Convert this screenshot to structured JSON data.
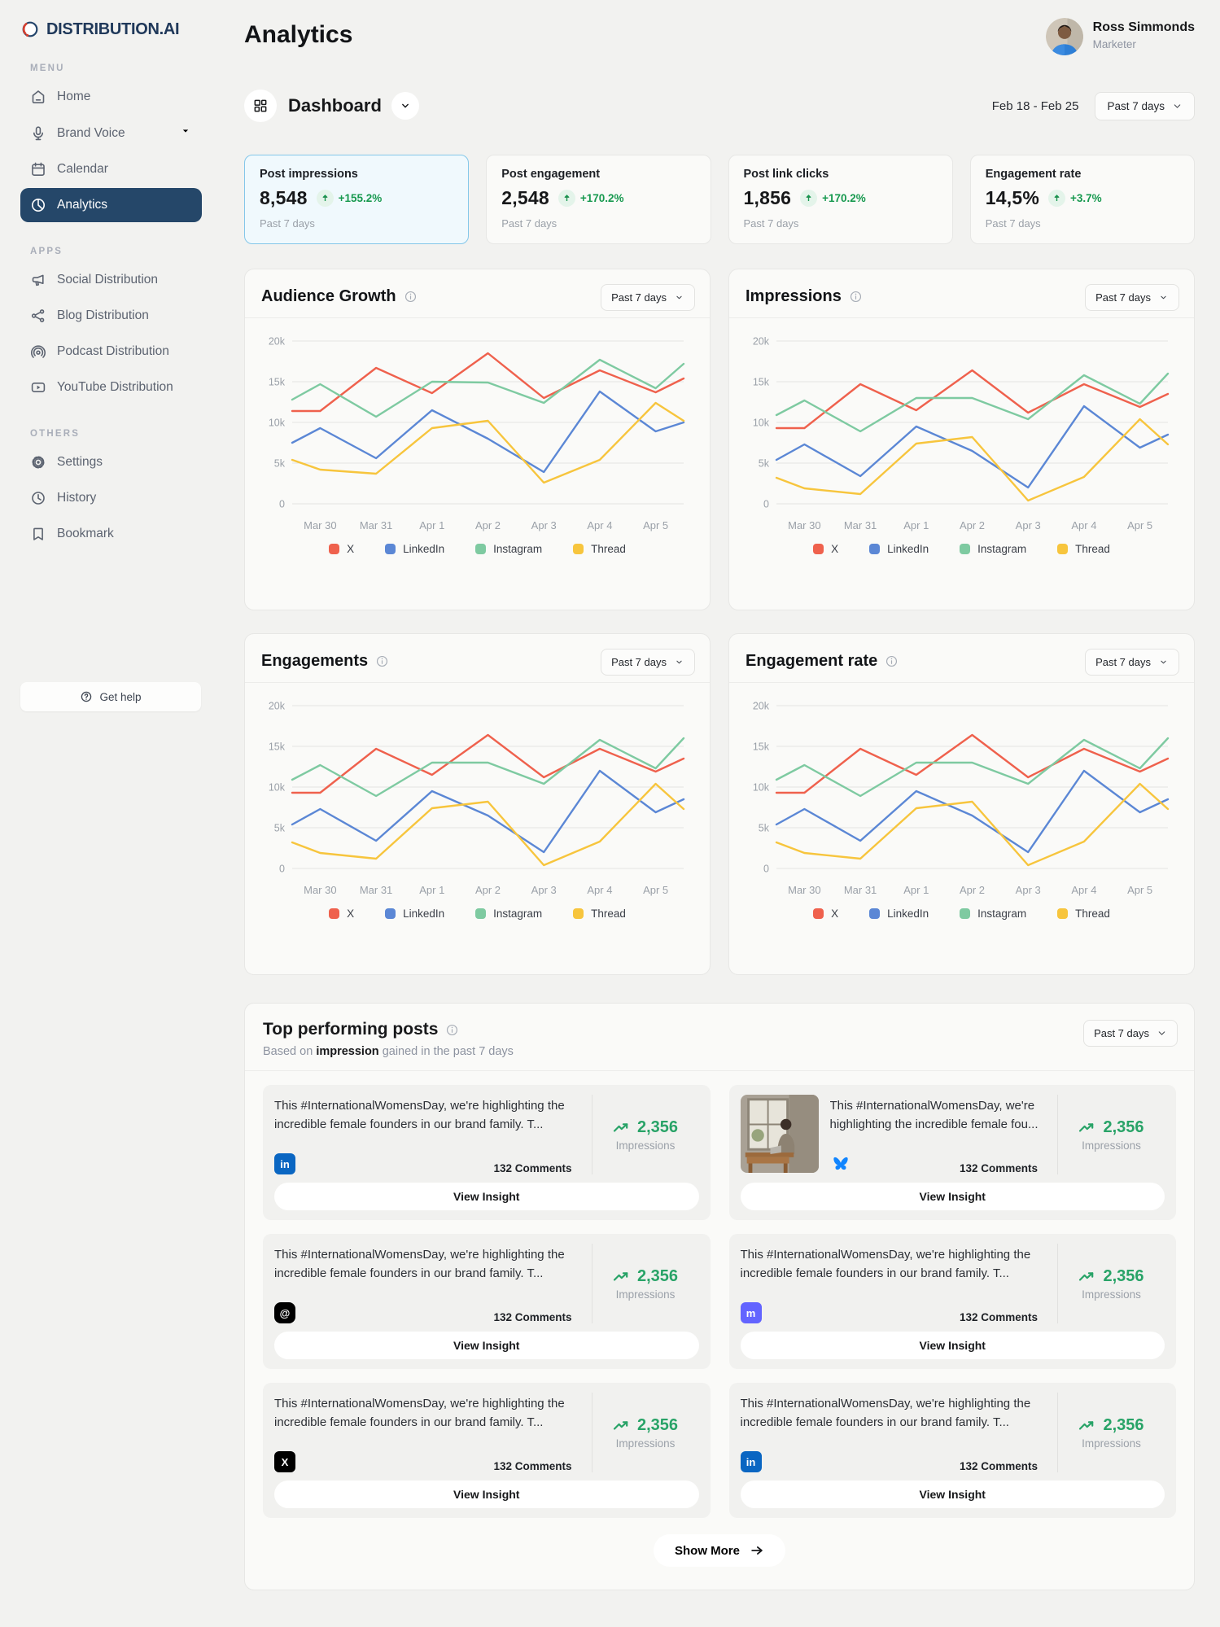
{
  "brand": {
    "name": "DISTRIBUTION.AI"
  },
  "page": {
    "title": "Analytics"
  },
  "user": {
    "name": "Ross Simmonds",
    "role": "Marketer"
  },
  "toolbar": {
    "view": "Dashboard",
    "date_range": "Feb 18 - Feb 25",
    "period": "Past 7 days"
  },
  "sidebar": {
    "help_label": "Get help",
    "sections": [
      {
        "label": "MENU",
        "items": [
          {
            "icon": "home-icon",
            "label": "Home"
          },
          {
            "icon": "microphone-icon",
            "label": "Brand Voice",
            "chevron": true
          },
          {
            "icon": "calendar-icon",
            "label": "Calendar"
          },
          {
            "icon": "pie-chart-icon",
            "label": "Analytics",
            "active": true
          }
        ]
      },
      {
        "label": "APPS",
        "items": [
          {
            "icon": "megaphone-icon",
            "label": "Social Distribution"
          },
          {
            "icon": "share-network-icon",
            "label": "Blog Distribution"
          },
          {
            "icon": "podcast-icon",
            "label": "Podcast Distribution"
          },
          {
            "icon": "youtube-icon",
            "label": "YouTube Distribution"
          }
        ]
      },
      {
        "label": "OTHERS",
        "items": [
          {
            "icon": "gear-icon",
            "label": "Settings"
          },
          {
            "icon": "history-icon",
            "label": "History"
          },
          {
            "icon": "bookmark-icon",
            "label": "Bookmark"
          }
        ]
      }
    ]
  },
  "stats": [
    {
      "label": "Post impressions",
      "value": "8,548",
      "change": "+155.2%",
      "period": "Past 7 days",
      "selected": true
    },
    {
      "label": "Post engagement",
      "value": "2,548",
      "change": "+170.2%",
      "period": "Past 7 days",
      "selected": false
    },
    {
      "label": "Post link clicks",
      "value": "1,856",
      "change": "+170.2%",
      "period": "Past 7 days",
      "selected": false
    },
    {
      "label": "Engagement rate",
      "value": "14,5%",
      "change": "+3.7%",
      "period": "Past 7 days",
      "selected": false
    }
  ],
  "chart_data": [
    {
      "type": "line",
      "title": "Audience Growth",
      "period": "Past 7 days",
      "categories": [
        "Mar 30",
        "Mar 31",
        "Apr 1",
        "Apr 2",
        "Apr 3",
        "Apr 4",
        "Apr 5"
      ],
      "x_offsets": [
        -0.5,
        0,
        1,
        2,
        3,
        4,
        5,
        6,
        6.5
      ],
      "ylim": [
        0,
        20000
      ],
      "ytick_labels": [
        "20k",
        "15k",
        "10k",
        "5k",
        "0"
      ],
      "grid": true,
      "legend_position": "bottom",
      "series": [
        {
          "name": "X",
          "color": "#ef614d",
          "values": [
            11400,
            11400,
            16700,
            13600,
            18500,
            13000,
            16400,
            13700,
            15400
          ]
        },
        {
          "name": "LinkedIn",
          "color": "#5b87d5",
          "values": [
            7500,
            9300,
            5600,
            11500,
            8000,
            3900,
            13800,
            8900,
            10000
          ]
        },
        {
          "name": "Instagram",
          "color": "#7ecaa1",
          "values": [
            12800,
            14700,
            10700,
            15000,
            14900,
            12400,
            17700,
            14200,
            17200
          ]
        },
        {
          "name": "Thread",
          "color": "#f7c53d",
          "values": [
            5400,
            4200,
            3700,
            9300,
            10200,
            2600,
            5400,
            12400,
            10200
          ]
        }
      ]
    },
    {
      "type": "line",
      "title": "Impressions",
      "period": "Past 7 days",
      "categories": [
        "Mar 30",
        "Mar 31",
        "Apr 1",
        "Apr 2",
        "Apr 3",
        "Apr 4",
        "Apr 5"
      ],
      "x_offsets": [
        -0.5,
        0,
        1,
        2,
        3,
        4,
        5,
        6,
        6.5
      ],
      "ylim": [
        0,
        20000
      ],
      "ytick_labels": [
        "20k",
        "15k",
        "10k",
        "5k",
        "0"
      ],
      "grid": true,
      "legend_position": "bottom",
      "series": [
        {
          "name": "X",
          "color": "#ef614d",
          "values": [
            9300,
            9300,
            14700,
            11500,
            16400,
            11200,
            14700,
            11900,
            13500
          ]
        },
        {
          "name": "LinkedIn",
          "color": "#5b87d5",
          "values": [
            5400,
            7300,
            3400,
            9500,
            6500,
            2000,
            12000,
            6900,
            8500
          ]
        },
        {
          "name": "Instagram",
          "color": "#7ecaa1",
          "values": [
            10900,
            12700,
            8900,
            13000,
            13000,
            10400,
            15800,
            12300,
            16000
          ]
        },
        {
          "name": "Thread",
          "color": "#f7c53d",
          "values": [
            3200,
            1900,
            1200,
            7400,
            8200,
            400,
            3300,
            10400,
            7300
          ]
        }
      ]
    },
    {
      "type": "line",
      "title": "Engagements",
      "period": "Past 7 days",
      "categories": [
        "Mar 30",
        "Mar 31",
        "Apr 1",
        "Apr 2",
        "Apr 3",
        "Apr 4",
        "Apr 5"
      ],
      "x_offsets": [
        -0.5,
        0,
        1,
        2,
        3,
        4,
        5,
        6,
        6.5
      ],
      "ylim": [
        0,
        20000
      ],
      "ytick_labels": [
        "20k",
        "15k",
        "10k",
        "5k",
        "0"
      ],
      "grid": true,
      "legend_position": "bottom",
      "series": [
        {
          "name": "X",
          "color": "#ef614d",
          "values": [
            9300,
            9300,
            14700,
            11500,
            16400,
            11200,
            14700,
            11900,
            13500
          ]
        },
        {
          "name": "LinkedIn",
          "color": "#5b87d5",
          "values": [
            5400,
            7300,
            3400,
            9500,
            6500,
            2000,
            12000,
            6900,
            8500
          ]
        },
        {
          "name": "Instagram",
          "color": "#7ecaa1",
          "values": [
            10900,
            12700,
            8900,
            13000,
            13000,
            10400,
            15800,
            12300,
            16000
          ]
        },
        {
          "name": "Thread",
          "color": "#f7c53d",
          "values": [
            3200,
            1900,
            1200,
            7400,
            8200,
            400,
            3300,
            10400,
            7300
          ]
        }
      ]
    },
    {
      "type": "line",
      "title": "Engagement rate",
      "period": "Past 7 days",
      "categories": [
        "Mar 30",
        "Mar 31",
        "Apr 1",
        "Apr 2",
        "Apr 3",
        "Apr 4",
        "Apr 5"
      ],
      "x_offsets": [
        -0.5,
        0,
        1,
        2,
        3,
        4,
        5,
        6,
        6.5
      ],
      "ylim": [
        0,
        20000
      ],
      "ytick_labels": [
        "20k",
        "15k",
        "10k",
        "5k",
        "0"
      ],
      "grid": true,
      "legend_position": "bottom",
      "series": [
        {
          "name": "X",
          "color": "#ef614d",
          "values": [
            9300,
            9300,
            14700,
            11500,
            16400,
            11200,
            14700,
            11900,
            13500
          ]
        },
        {
          "name": "LinkedIn",
          "color": "#5b87d5",
          "values": [
            5400,
            7300,
            3400,
            9500,
            6500,
            2000,
            12000,
            6900,
            8500
          ]
        },
        {
          "name": "Instagram",
          "color": "#7ecaa1",
          "values": [
            10900,
            12700,
            8900,
            13000,
            13000,
            10400,
            15800,
            12300,
            16000
          ]
        },
        {
          "name": "Thread",
          "color": "#f7c53d",
          "values": [
            3200,
            1900,
            1200,
            7400,
            8200,
            400,
            3300,
            10400,
            7300
          ]
        }
      ]
    }
  ],
  "posts": {
    "title": "Top performing posts",
    "subtitle_prefix": "Based on ",
    "subtitle_bold": "impression",
    "subtitle_suffix": " gained in the past 7 days",
    "period": "Past 7 days",
    "show_more": "Show More",
    "items": [
      {
        "platform": "linkedin",
        "thumbnail": false,
        "text": "This #InternationalWomensDay, we're highlighting the incredible female founders in our brand family. T...",
        "comments": "132 Comments",
        "impressions": "2,356",
        "impressions_label": "Impressions",
        "button": "View Insight"
      },
      {
        "platform": "bluesky",
        "thumbnail": true,
        "text": "This #InternationalWomensDay, we're highlighting the incredible female fou...",
        "comments": "132 Comments",
        "impressions": "2,356",
        "impressions_label": "Impressions",
        "button": "View Insight"
      },
      {
        "platform": "threads",
        "thumbnail": false,
        "text": "This #InternationalWomensDay, we're highlighting the incredible female founders in our brand family. T...",
        "comments": "132 Comments",
        "impressions": "2,356",
        "impressions_label": "Impressions",
        "button": "View Insight"
      },
      {
        "platform": "mastodon",
        "thumbnail": false,
        "text": "This #InternationalWomensDay, we're highlighting the incredible female founders in our brand family. T...",
        "comments": "132 Comments",
        "impressions": "2,356",
        "impressions_label": "Impressions",
        "button": "View Insight"
      },
      {
        "platform": "x",
        "thumbnail": false,
        "text": "This #InternationalWomensDay, we're highlighting the incredible female founders in our brand family. T...",
        "comments": "132 Comments",
        "impressions": "2,356",
        "impressions_label": "Impressions",
        "button": "View Insight"
      },
      {
        "platform": "linkedin",
        "thumbnail": false,
        "text": "This #InternationalWomensDay, we're highlighting the incredible female founders in our brand family. T...",
        "comments": "132 Comments",
        "impressions": "2,356",
        "impressions_label": "Impressions",
        "button": "View Insight"
      }
    ]
  }
}
